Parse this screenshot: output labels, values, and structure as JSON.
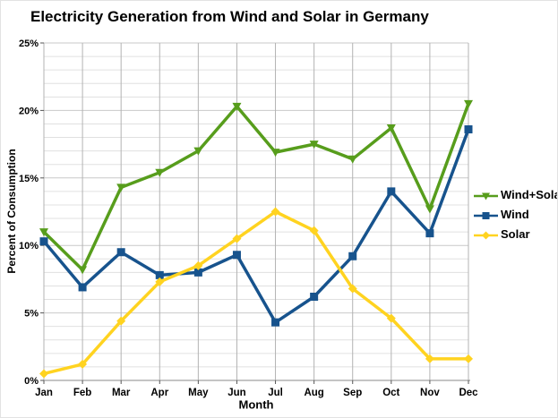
{
  "page": {
    "title": "Electricity Generation from Wind and Solar in Germany"
  },
  "chart_data": {
    "type": "line",
    "title": "Electricity Generation from Wind and Solar in Germany",
    "xlabel": "Month",
    "ylabel": "Percent of Consumption",
    "ylim": [
      0,
      25
    ],
    "ytick_major_step": 5,
    "ytick_minor_step": 1,
    "ytick_labels": [
      "0%",
      "5%",
      "10%",
      "15%",
      "20%",
      "25%"
    ],
    "grid": true,
    "legend_position": "right",
    "categories": [
      "Jan",
      "Feb",
      "Mar",
      "Apr",
      "May",
      "Jun",
      "Jul",
      "Aug",
      "Sep",
      "Oct",
      "Nov",
      "Dec"
    ],
    "series": [
      {
        "name": "Wind+Solar",
        "color": "#579D1C",
        "marker": "triangle-down",
        "values": [
          11.0,
          8.2,
          14.3,
          15.4,
          17.0,
          20.3,
          16.9,
          17.5,
          16.4,
          18.7,
          12.7,
          20.5
        ]
      },
      {
        "name": "Wind",
        "color": "#17538D",
        "marker": "square",
        "values": [
          10.3,
          6.9,
          9.5,
          7.8,
          8.0,
          9.3,
          4.3,
          6.2,
          9.2,
          14.0,
          10.9,
          18.6
        ]
      },
      {
        "name": "Solar",
        "color": "#FFD320",
        "marker": "diamond",
        "values": [
          0.5,
          1.2,
          4.4,
          7.3,
          8.5,
          10.5,
          12.5,
          11.1,
          6.8,
          4.6,
          1.6,
          1.6
        ]
      }
    ],
    "colors": {
      "grid_minor": "#e0e0e0",
      "grid_major": "#c9c9c9",
      "grid_vertical": "#b3b3b3",
      "axis": "#8a8a8a",
      "tick": "#555555",
      "text": "#000000",
      "background": "#ffffff"
    }
  }
}
